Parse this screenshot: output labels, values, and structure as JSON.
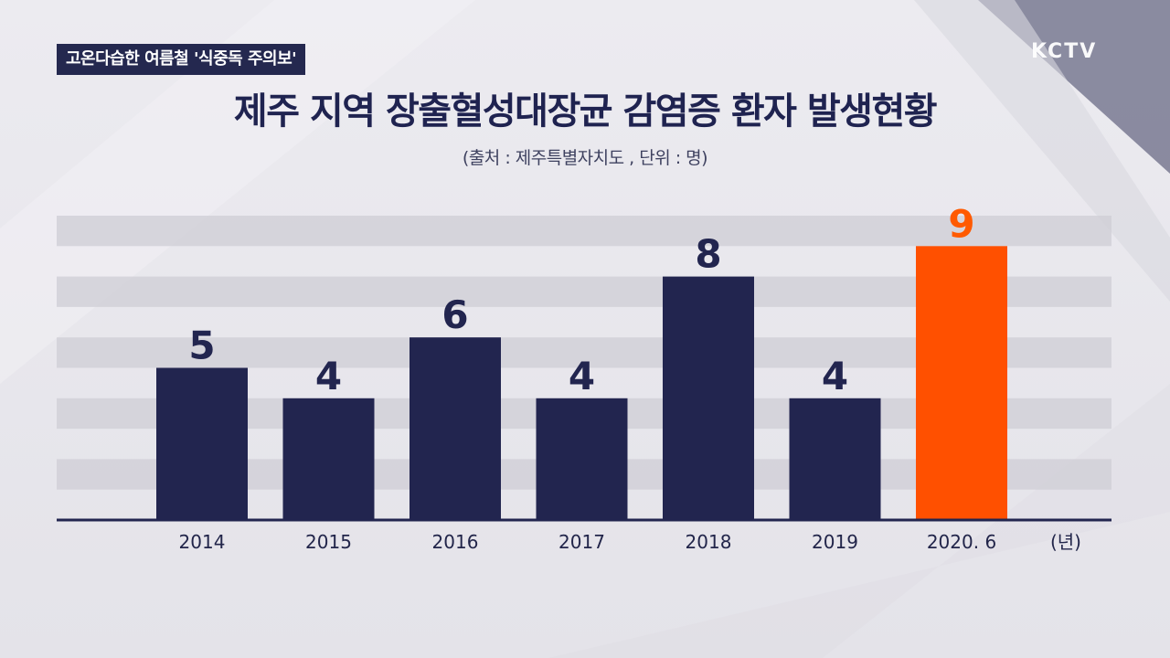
{
  "banner": {
    "text": "고온다습한 여름철 '식중독 주의보'"
  },
  "logo": {
    "text": "KCTV"
  },
  "chart_data": {
    "type": "bar",
    "title": "제주 지역 장출혈성대장균 감염증 환자 발생현황",
    "subtitle": "(출처 : 제주특별자치도 , 단위 : 명)",
    "categories": [
      "2014",
      "2015",
      "2016",
      "2017",
      "2018",
      "2019",
      "2020. 6"
    ],
    "values": [
      5,
      4,
      6,
      4,
      8,
      4,
      9
    ],
    "x_unit_label": "(년)",
    "ylim": [
      0,
      9
    ],
    "colors": {
      "bar": "#22254f",
      "highlight": "#ff5000",
      "highlight_label": "#ff5a00",
      "label": "#22254f"
    },
    "highlight_index": 6,
    "grid": true
  }
}
